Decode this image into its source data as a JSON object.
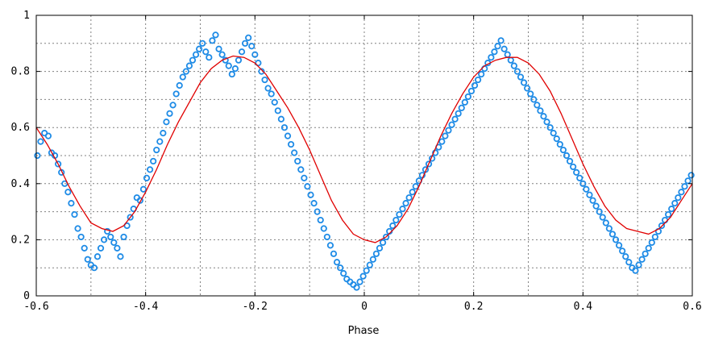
{
  "chart_data": {
    "type": "scatter",
    "title": "",
    "xlabel": "Phase",
    "ylabel": "",
    "xlim": [
      -0.6,
      0.6
    ],
    "ylim": [
      0,
      1
    ],
    "x_ticks": [
      -0.6,
      -0.4,
      -0.2,
      0,
      0.2,
      0.4,
      0.6
    ],
    "x_tick_labels": [
      "-0.6",
      "-0.4",
      "-0.2",
      "0",
      "0.2",
      "0.4",
      "0.6"
    ],
    "y_ticks": [
      0,
      0.2,
      0.4,
      0.6,
      0.8,
      1
    ],
    "y_tick_labels": [
      "0",
      "0.2",
      "0.4",
      "0.6",
      "0.8",
      "1"
    ],
    "grid": true,
    "grid_style": "dotted",
    "legend": "none",
    "colors": {
      "points": "#1e8be6",
      "curve": "#e00000",
      "frame": "#000000",
      "grid": "#808080"
    },
    "series": [
      {
        "type": "scatter",
        "marker": "open-circle",
        "points": [
          [
            -0.598,
            0.5
          ],
          [
            -0.592,
            0.55
          ],
          [
            -0.585,
            0.58
          ],
          [
            -0.578,
            0.57
          ],
          [
            -0.572,
            0.51
          ],
          [
            -0.566,
            0.5
          ],
          [
            -0.56,
            0.47
          ],
          [
            -0.554,
            0.44
          ],
          [
            -0.548,
            0.4
          ],
          [
            -0.542,
            0.37
          ],
          [
            -0.536,
            0.33
          ],
          [
            -0.53,
            0.29
          ],
          [
            -0.524,
            0.24
          ],
          [
            -0.518,
            0.21
          ],
          [
            -0.512,
            0.17
          ],
          [
            -0.506,
            0.13
          ],
          [
            -0.5,
            0.11
          ],
          [
            -0.494,
            0.1
          ],
          [
            -0.488,
            0.14
          ],
          [
            -0.482,
            0.17
          ],
          [
            -0.476,
            0.2
          ],
          [
            -0.47,
            0.23
          ],
          [
            -0.464,
            0.21
          ],
          [
            -0.458,
            0.19
          ],
          [
            -0.452,
            0.17
          ],
          [
            -0.446,
            0.14
          ],
          [
            -0.44,
            0.21
          ],
          [
            -0.434,
            0.25
          ],
          [
            -0.428,
            0.28
          ],
          [
            -0.422,
            0.31
          ],
          [
            -0.416,
            0.35
          ],
          [
            -0.41,
            0.34
          ],
          [
            -0.404,
            0.38
          ],
          [
            -0.398,
            0.42
          ],
          [
            -0.392,
            0.45
          ],
          [
            -0.386,
            0.48
          ],
          [
            -0.38,
            0.52
          ],
          [
            -0.374,
            0.55
          ],
          [
            -0.368,
            0.58
          ],
          [
            -0.362,
            0.62
          ],
          [
            -0.356,
            0.65
          ],
          [
            -0.35,
            0.68
          ],
          [
            -0.344,
            0.72
          ],
          [
            -0.338,
            0.75
          ],
          [
            -0.332,
            0.78
          ],
          [
            -0.326,
            0.8
          ],
          [
            -0.32,
            0.82
          ],
          [
            -0.314,
            0.84
          ],
          [
            -0.308,
            0.86
          ],
          [
            -0.302,
            0.88
          ],
          [
            -0.296,
            0.9
          ],
          [
            -0.29,
            0.87
          ],
          [
            -0.284,
            0.85
          ],
          [
            -0.278,
            0.91
          ],
          [
            -0.272,
            0.93
          ],
          [
            -0.266,
            0.88
          ],
          [
            -0.26,
            0.86
          ],
          [
            -0.254,
            0.84
          ],
          [
            -0.248,
            0.82
          ],
          [
            -0.242,
            0.79
          ],
          [
            -0.236,
            0.81
          ],
          [
            -0.23,
            0.84
          ],
          [
            -0.224,
            0.87
          ],
          [
            -0.218,
            0.9
          ],
          [
            -0.212,
            0.92
          ],
          [
            -0.206,
            0.89
          ],
          [
            -0.2,
            0.86
          ],
          [
            -0.194,
            0.83
          ],
          [
            -0.188,
            0.8
          ],
          [
            -0.182,
            0.77
          ],
          [
            -0.176,
            0.74
          ],
          [
            -0.17,
            0.72
          ],
          [
            -0.164,
            0.69
          ],
          [
            -0.158,
            0.66
          ],
          [
            -0.152,
            0.63
          ],
          [
            -0.146,
            0.6
          ],
          [
            -0.14,
            0.57
          ],
          [
            -0.134,
            0.54
          ],
          [
            -0.128,
            0.51
          ],
          [
            -0.122,
            0.48
          ],
          [
            -0.116,
            0.45
          ],
          [
            -0.11,
            0.42
          ],
          [
            -0.104,
            0.39
          ],
          [
            -0.098,
            0.36
          ],
          [
            -0.092,
            0.33
          ],
          [
            -0.086,
            0.3
          ],
          [
            -0.08,
            0.27
          ],
          [
            -0.074,
            0.24
          ],
          [
            -0.068,
            0.21
          ],
          [
            -0.062,
            0.18
          ],
          [
            -0.056,
            0.15
          ],
          [
            -0.05,
            0.12
          ],
          [
            -0.044,
            0.1
          ],
          [
            -0.038,
            0.08
          ],
          [
            -0.032,
            0.06
          ],
          [
            -0.026,
            0.05
          ],
          [
            -0.02,
            0.04
          ],
          [
            -0.014,
            0.03
          ],
          [
            -0.008,
            0.05
          ],
          [
            -0.002,
            0.07
          ],
          [
            0.004,
            0.09
          ],
          [
            0.01,
            0.11
          ],
          [
            0.016,
            0.13
          ],
          [
            0.022,
            0.15
          ],
          [
            0.028,
            0.17
          ],
          [
            0.034,
            0.19
          ],
          [
            0.04,
            0.21
          ],
          [
            0.046,
            0.23
          ],
          [
            0.052,
            0.25
          ],
          [
            0.058,
            0.27
          ],
          [
            0.064,
            0.29
          ],
          [
            0.07,
            0.31
          ],
          [
            0.076,
            0.33
          ],
          [
            0.082,
            0.35
          ],
          [
            0.088,
            0.37
          ],
          [
            0.094,
            0.39
          ],
          [
            0.1,
            0.41
          ],
          [
            0.106,
            0.43
          ],
          [
            0.112,
            0.45
          ],
          [
            0.118,
            0.47
          ],
          [
            0.124,
            0.49
          ],
          [
            0.13,
            0.51
          ],
          [
            0.136,
            0.53
          ],
          [
            0.142,
            0.55
          ],
          [
            0.148,
            0.57
          ],
          [
            0.154,
            0.59
          ],
          [
            0.16,
            0.61
          ],
          [
            0.166,
            0.63
          ],
          [
            0.172,
            0.65
          ],
          [
            0.178,
            0.67
          ],
          [
            0.184,
            0.69
          ],
          [
            0.19,
            0.71
          ],
          [
            0.196,
            0.73
          ],
          [
            0.202,
            0.75
          ],
          [
            0.208,
            0.77
          ],
          [
            0.214,
            0.79
          ],
          [
            0.22,
            0.81
          ],
          [
            0.226,
            0.83
          ],
          [
            0.232,
            0.85
          ],
          [
            0.238,
            0.87
          ],
          [
            0.244,
            0.89
          ],
          [
            0.25,
            0.91
          ],
          [
            0.256,
            0.88
          ],
          [
            0.262,
            0.86
          ],
          [
            0.268,
            0.84
          ],
          [
            0.274,
            0.82
          ],
          [
            0.28,
            0.8
          ],
          [
            0.286,
            0.78
          ],
          [
            0.292,
            0.76
          ],
          [
            0.298,
            0.74
          ],
          [
            0.304,
            0.72
          ],
          [
            0.31,
            0.7
          ],
          [
            0.316,
            0.68
          ],
          [
            0.322,
            0.66
          ],
          [
            0.328,
            0.64
          ],
          [
            0.334,
            0.62
          ],
          [
            0.34,
            0.6
          ],
          [
            0.346,
            0.58
          ],
          [
            0.352,
            0.56
          ],
          [
            0.358,
            0.54
          ],
          [
            0.364,
            0.52
          ],
          [
            0.37,
            0.5
          ],
          [
            0.376,
            0.48
          ],
          [
            0.382,
            0.46
          ],
          [
            0.388,
            0.44
          ],
          [
            0.394,
            0.42
          ],
          [
            0.4,
            0.4
          ],
          [
            0.406,
            0.38
          ],
          [
            0.412,
            0.36
          ],
          [
            0.418,
            0.34
          ],
          [
            0.424,
            0.32
          ],
          [
            0.43,
            0.3
          ],
          [
            0.436,
            0.28
          ],
          [
            0.442,
            0.26
          ],
          [
            0.448,
            0.24
          ],
          [
            0.454,
            0.22
          ],
          [
            0.46,
            0.2
          ],
          [
            0.466,
            0.18
          ],
          [
            0.472,
            0.16
          ],
          [
            0.478,
            0.14
          ],
          [
            0.484,
            0.12
          ],
          [
            0.49,
            0.1
          ],
          [
            0.496,
            0.09
          ],
          [
            0.502,
            0.11
          ],
          [
            0.508,
            0.13
          ],
          [
            0.514,
            0.15
          ],
          [
            0.52,
            0.17
          ],
          [
            0.526,
            0.19
          ],
          [
            0.532,
            0.21
          ],
          [
            0.538,
            0.23
          ],
          [
            0.544,
            0.25
          ],
          [
            0.55,
            0.27
          ],
          [
            0.556,
            0.29
          ],
          [
            0.562,
            0.31
          ],
          [
            0.568,
            0.33
          ],
          [
            0.574,
            0.35
          ],
          [
            0.58,
            0.37
          ],
          [
            0.586,
            0.39
          ],
          [
            0.592,
            0.41
          ],
          [
            0.598,
            0.43
          ]
        ]
      },
      {
        "type": "line",
        "points": [
          [
            -0.6,
            0.6
          ],
          [
            -0.58,
            0.54
          ],
          [
            -0.56,
            0.47
          ],
          [
            -0.54,
            0.39
          ],
          [
            -0.52,
            0.32
          ],
          [
            -0.5,
            0.26
          ],
          [
            -0.48,
            0.24
          ],
          [
            -0.46,
            0.23
          ],
          [
            -0.44,
            0.25
          ],
          [
            -0.42,
            0.3
          ],
          [
            -0.4,
            0.37
          ],
          [
            -0.38,
            0.45
          ],
          [
            -0.36,
            0.54
          ],
          [
            -0.34,
            0.62
          ],
          [
            -0.32,
            0.69
          ],
          [
            -0.3,
            0.76
          ],
          [
            -0.28,
            0.81
          ],
          [
            -0.26,
            0.84
          ],
          [
            -0.24,
            0.855
          ],
          [
            -0.22,
            0.85
          ],
          [
            -0.2,
            0.83
          ],
          [
            -0.18,
            0.79
          ],
          [
            -0.16,
            0.73
          ],
          [
            -0.14,
            0.67
          ],
          [
            -0.12,
            0.6
          ],
          [
            -0.1,
            0.52
          ],
          [
            -0.08,
            0.43
          ],
          [
            -0.06,
            0.34
          ],
          [
            -0.04,
            0.27
          ],
          [
            -0.02,
            0.22
          ],
          [
            0.0,
            0.2
          ],
          [
            0.02,
            0.19
          ],
          [
            0.04,
            0.21
          ],
          [
            0.06,
            0.25
          ],
          [
            0.08,
            0.31
          ],
          [
            0.1,
            0.39
          ],
          [
            0.12,
            0.48
          ],
          [
            0.14,
            0.57
          ],
          [
            0.16,
            0.65
          ],
          [
            0.18,
            0.72
          ],
          [
            0.2,
            0.78
          ],
          [
            0.22,
            0.82
          ],
          [
            0.24,
            0.84
          ],
          [
            0.26,
            0.85
          ],
          [
            0.28,
            0.85
          ],
          [
            0.3,
            0.83
          ],
          [
            0.32,
            0.79
          ],
          [
            0.34,
            0.73
          ],
          [
            0.36,
            0.65
          ],
          [
            0.38,
            0.56
          ],
          [
            0.4,
            0.47
          ],
          [
            0.42,
            0.39
          ],
          [
            0.44,
            0.32
          ],
          [
            0.46,
            0.27
          ],
          [
            0.48,
            0.24
          ],
          [
            0.5,
            0.23
          ],
          [
            0.52,
            0.22
          ],
          [
            0.54,
            0.24
          ],
          [
            0.56,
            0.28
          ],
          [
            0.58,
            0.34
          ],
          [
            0.6,
            0.4
          ]
        ]
      }
    ]
  }
}
